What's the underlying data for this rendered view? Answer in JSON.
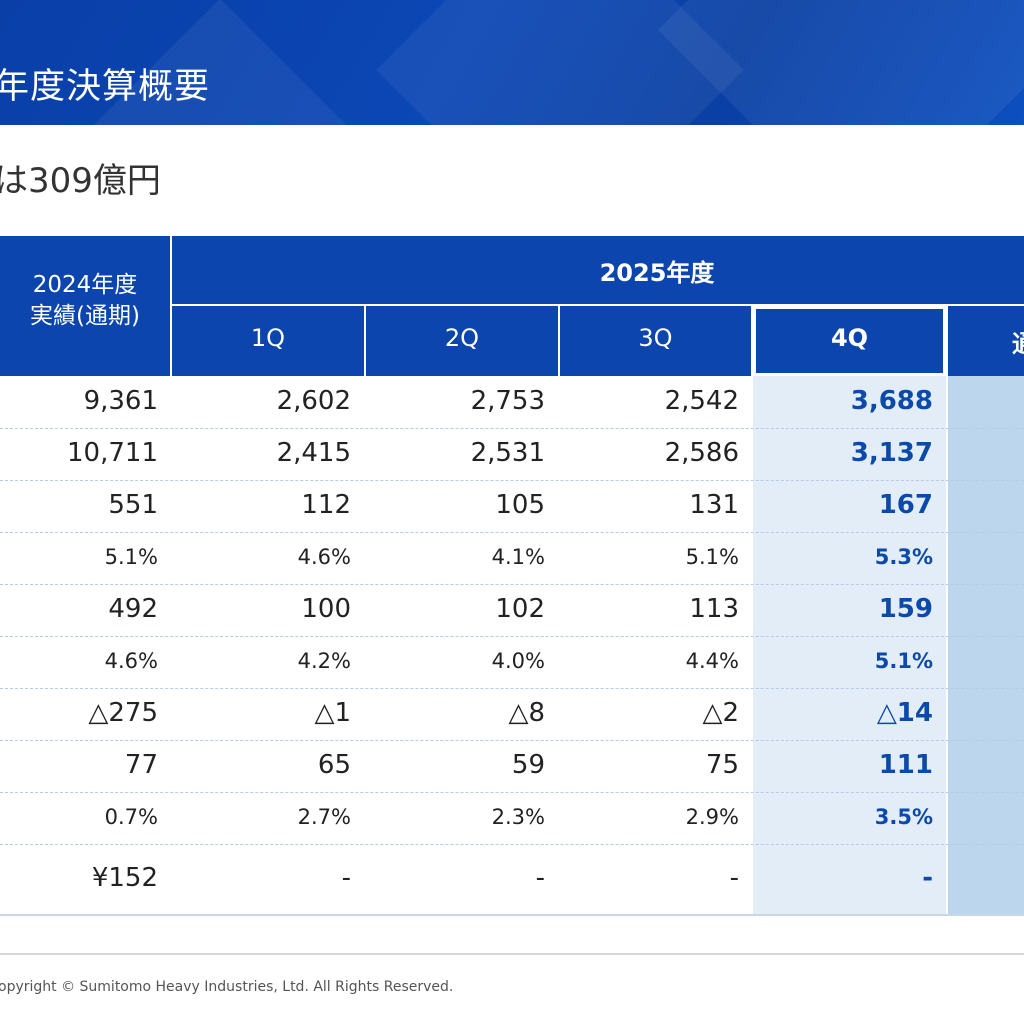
{
  "header": {
    "title": "年度決算概要"
  },
  "subtitle": "は309億円",
  "table": {
    "prev_year_header": "2024年度\n実績(通期)",
    "current_year_header": "2025年度",
    "quarter_headers": [
      "1Q",
      "2Q",
      "3Q",
      "4Q",
      "通"
    ],
    "rows": [
      {
        "prev": "9,361",
        "q1": "2,602",
        "q2": "2,753",
        "q3": "2,542",
        "q4": "3,688",
        "small": false
      },
      {
        "prev": "10,711",
        "q1": "2,415",
        "q2": "2,531",
        "q3": "2,586",
        "q4": "3,137",
        "small": false
      },
      {
        "prev": "551",
        "q1": "112",
        "q2": "105",
        "q3": "131",
        "q4": "167",
        "small": false
      },
      {
        "prev": "5.1%",
        "q1": "4.6%",
        "q2": "4.1%",
        "q3": "5.1%",
        "q4": "5.3%",
        "small": true
      },
      {
        "prev": "492",
        "q1": "100",
        "q2": "102",
        "q3": "113",
        "q4": "159",
        "small": false
      },
      {
        "prev": "4.6%",
        "q1": "4.2%",
        "q2": "4.0%",
        "q3": "4.4%",
        "q4": "5.1%",
        "small": true
      },
      {
        "prev": "△275",
        "q1": "△1",
        "q2": "△8",
        "q3": "△2",
        "q4": "△14",
        "small": false
      },
      {
        "prev": "77",
        "q1": "65",
        "q2": "59",
        "q3": "75",
        "q4": "111",
        "small": false
      },
      {
        "prev": "0.7%",
        "q1": "2.7%",
        "q2": "2.3%",
        "q3": "2.9%",
        "q4": "3.5%",
        "small": true
      },
      {
        "prev": "¥152",
        "q1": "-",
        "q2": "-",
        "q3": "-",
        "q4": "-",
        "small": false
      }
    ]
  },
  "footer": {
    "copyright": "opyright © Sumitomo Heavy Industries, Ltd. All Rights Reserved."
  },
  "colors": {
    "header_blue": "#0b45ad",
    "q4_text": "#0b4aa8",
    "q4_bg": "#e2edf8",
    "fy_bg": "#bcd6ee"
  }
}
